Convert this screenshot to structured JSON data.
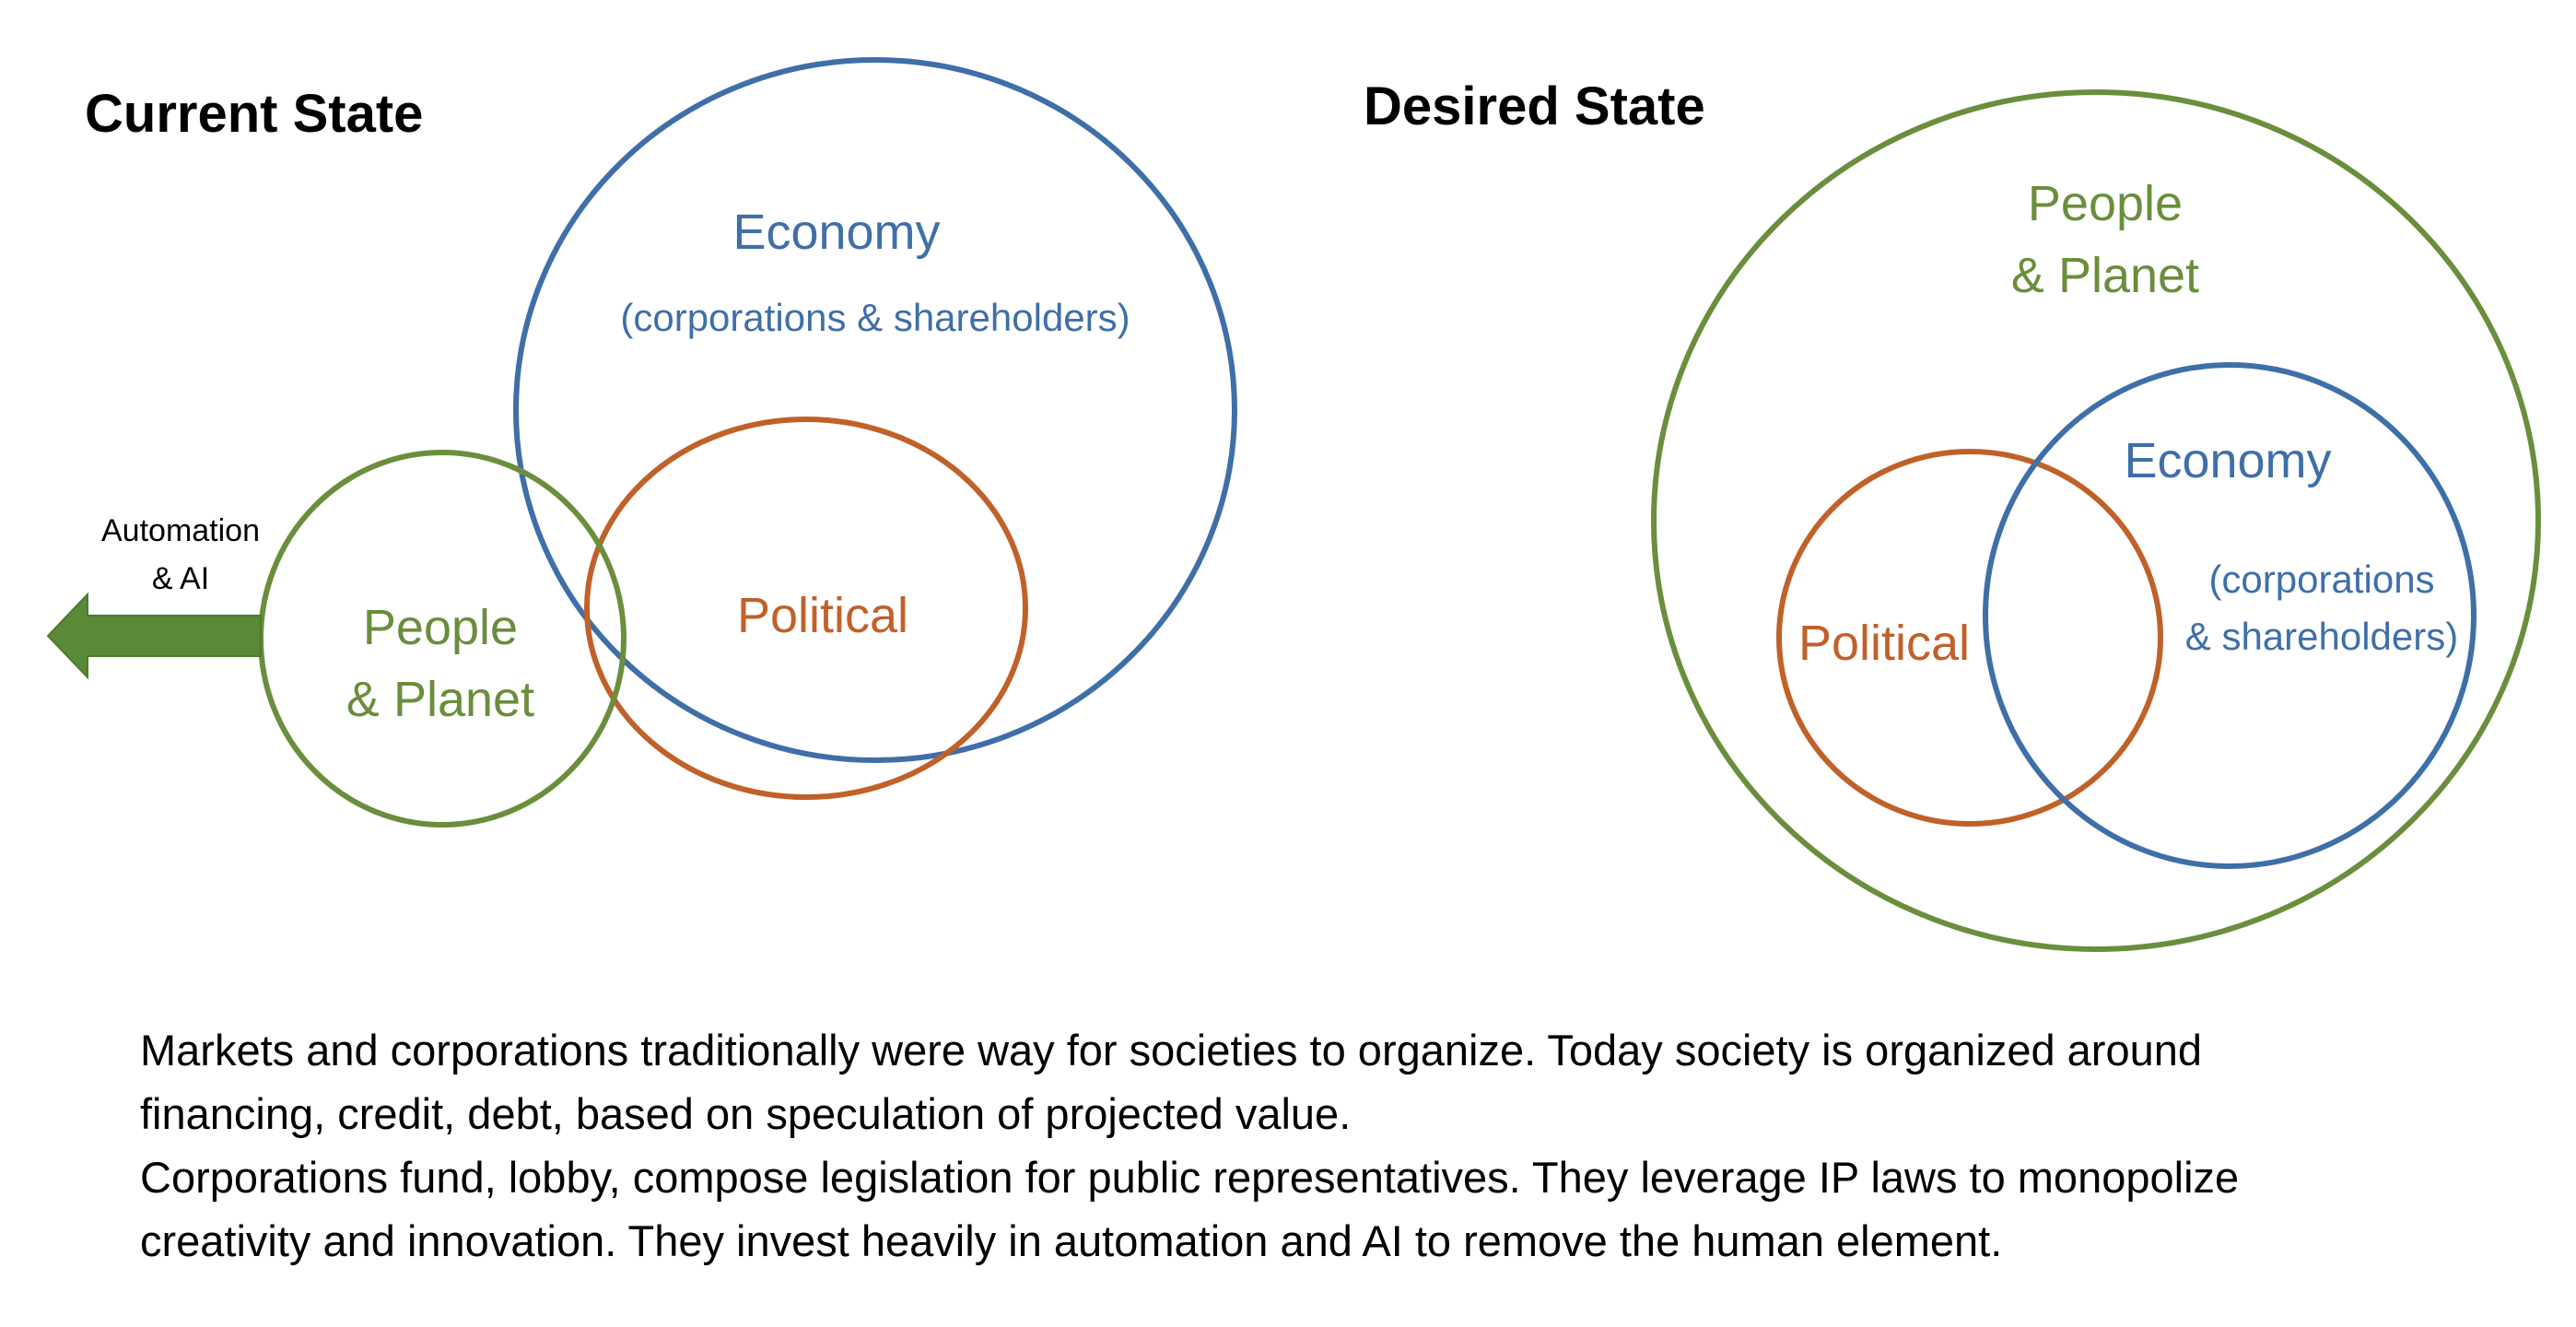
{
  "current_state": {
    "title": "Current State",
    "economy": {
      "label": "Economy",
      "sublabel": "(corporations & shareholders)"
    },
    "political": {
      "label": "Political"
    },
    "people_planet": {
      "label_line1": "People",
      "label_line2": "& Planet"
    },
    "arrow": {
      "label_line1": "Automation",
      "label_line2": "& AI"
    }
  },
  "desired_state": {
    "title": "Desired State",
    "people_planet": {
      "label_line1": "People",
      "label_line2": "& Planet"
    },
    "economy": {
      "label": "Economy",
      "sublabel_line1": "(corporations",
      "sublabel_line2": "& shareholders)"
    },
    "political": {
      "label": "Political"
    }
  },
  "caption": {
    "line1": "Markets and corporations traditionally were way for societies to organize. Today society is organized around",
    "line2": "financing, credit, debt, based on speculation of projected value.",
    "line3": "Corporations fund, lobby, compose legislation for public representatives. They leverage IP laws to monopolize",
    "line4": "creativity and innovation. They invest heavily in automation and AI to remove the human element."
  },
  "colors": {
    "green": "#6a8e3c",
    "blue": "#3f6fa8",
    "orange": "#c0612a"
  }
}
